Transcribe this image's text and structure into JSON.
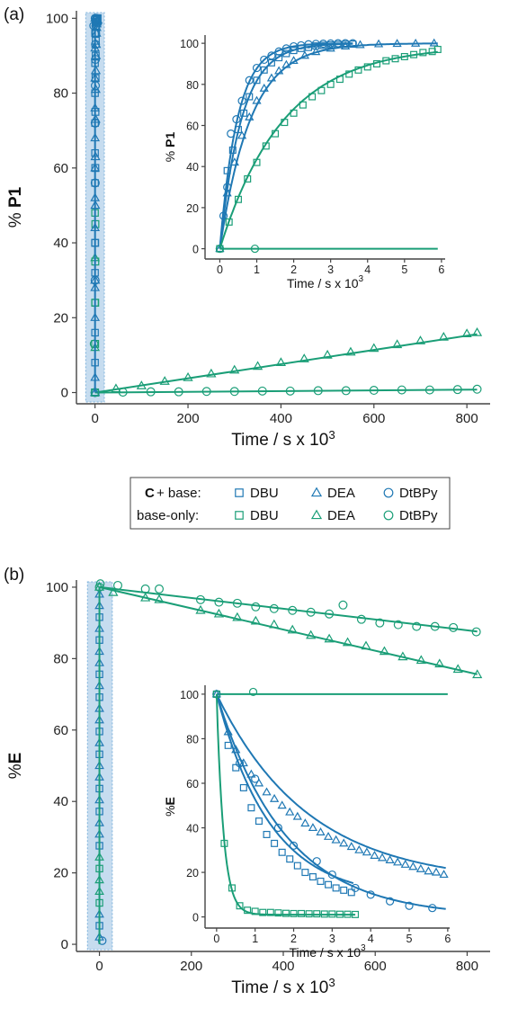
{
  "colors": {
    "blue": "#1f78b4",
    "green": "#1a9e77",
    "highlight": "#c6dcef"
  },
  "panels": {
    "a": {
      "label": "(a)"
    },
    "b": {
      "label": "(b)"
    }
  },
  "legend": {
    "row1_prefix_bold": "C",
    "row1_suffix": " + base:",
    "row2": "base-only:",
    "items": [
      "DBU",
      "DEA",
      "DtBPy"
    ]
  },
  "chart_data": [
    {
      "id": "a-main",
      "type": "scatter",
      "xlabel": "Time / s x 10^3",
      "ylabel": "% P1",
      "xlim": [
        -40,
        850
      ],
      "ylim": [
        -3,
        102
      ],
      "xticks": [
        0,
        200,
        400,
        600,
        800
      ],
      "yticks": [
        0,
        20,
        40,
        60,
        80,
        100
      ],
      "series": [
        {
          "group": "base-only",
          "base": "DEA",
          "marker": "triangle",
          "color": "green",
          "x": [
            0,
            45,
            100,
            150,
            200,
            250,
            300,
            350,
            400,
            450,
            500,
            550,
            600,
            650,
            700,
            750,
            800,
            822
          ],
          "y": [
            0,
            1.0,
            1.8,
            3.0,
            4.0,
            5.0,
            6.0,
            7.0,
            8.0,
            9.0,
            10.0,
            10.8,
            11.8,
            12.8,
            13.8,
            14.8,
            15.7,
            16.0
          ],
          "fit": {
            "x": [
              0,
              822
            ],
            "y": [
              0,
              15.6
            ]
          }
        },
        {
          "group": "base-only",
          "base": "DtBPy",
          "marker": "circle",
          "color": "green",
          "x": [
            0,
            60,
            120,
            180,
            240,
            300,
            360,
            420,
            480,
            540,
            600,
            660,
            720,
            780,
            822
          ],
          "y": [
            0,
            0.1,
            0.2,
            0.2,
            0.3,
            0.3,
            0.4,
            0.4,
            0.5,
            0.5,
            0.6,
            0.7,
            0.7,
            0.8,
            0.9
          ],
          "fit": {
            "x": [
              0,
              822
            ],
            "y": [
              0,
              0.8
            ]
          }
        },
        {
          "group": "C + base",
          "base": "DBU",
          "marker": "square",
          "color": "blue",
          "x": [
            0,
            0.3,
            0.6,
            0.9,
            1.2,
            1.5,
            1.8,
            2.1,
            2.5,
            3.0,
            3.5,
            4.0,
            4.5,
            5.0,
            5.5,
            6.0
          ],
          "y": [
            0,
            40,
            60,
            75,
            84,
            90,
            94,
            96,
            98,
            99,
            99.5,
            99.7,
            99.8,
            99.9,
            99.9,
            100
          ]
        },
        {
          "group": "C + base",
          "base": "DEA",
          "marker": "triangle",
          "color": "blue",
          "x": [
            0,
            0.3,
            0.6,
            0.9,
            1.2,
            1.5,
            1.8,
            2.1,
            2.5,
            3.0,
            3.5,
            4.0,
            4.5,
            5.0,
            5.5,
            6.0
          ],
          "y": [
            0,
            30,
            50,
            63,
            73,
            81,
            86,
            90,
            93,
            96,
            97.5,
            98.5,
            99,
            99.3,
            99.5,
            99.6
          ]
        },
        {
          "group": "C + base",
          "base": "DtBPy",
          "marker": "circle",
          "color": "blue",
          "x": [
            0,
            0.2,
            0.4,
            0.6,
            0.8,
            1.0,
            1.2,
            1.5,
            1.8,
            2.1,
            2.4,
            2.7,
            3.0,
            3.3,
            3.6
          ],
          "y": [
            0,
            30,
            56,
            72,
            82,
            89,
            93,
            96,
            98,
            99,
            99.5,
            99.7,
            99.8,
            99.9,
            100
          ]
        },
        {
          "group": "base-only",
          "base": "DBU",
          "marker": "square",
          "color": "green",
          "x": [
            0,
            0.2,
            0.4,
            0.6,
            0.8
          ],
          "y": [
            0,
            13,
            24,
            35,
            45
          ]
        }
      ]
    },
    {
      "id": "a-inset",
      "type": "scatter",
      "xlabel": "Time / s x 10^3",
      "ylabel": "% P1",
      "xlim": [
        -0.4,
        6.1
      ],
      "ylim": [
        -5,
        104
      ],
      "xticks": [
        0,
        1,
        2,
        3,
        4,
        5,
        6
      ],
      "yticks": [
        0,
        20,
        40,
        60,
        80,
        100
      ],
      "series": [
        {
          "group": "C + base",
          "base": "DtBPy",
          "marker": "circle",
          "color": "blue",
          "x": [
            0,
            0.1,
            0.2,
            0.3,
            0.45,
            0.6,
            0.8,
            1.0,
            1.2,
            1.4,
            1.6,
            1.8,
            2.0,
            2.2,
            2.4,
            2.6,
            2.8,
            3.0,
            3.2,
            3.4,
            3.6
          ],
          "y": [
            0,
            16,
            30,
            56,
            63,
            72,
            82,
            88,
            92,
            94,
            96,
            97.5,
            98.5,
            99,
            99.5,
            99.7,
            99.8,
            99.9,
            100,
            100,
            100
          ],
          "fit": {
            "k": 2.1,
            "A": 100,
            "xmax": 3.6
          }
        },
        {
          "group": "C + base",
          "base": "DBU",
          "marker": "square",
          "color": "blue",
          "x": [
            0,
            0.2,
            0.35,
            0.5,
            0.65,
            0.8,
            1.0,
            1.2,
            1.4,
            1.6,
            1.8,
            2.0,
            2.2,
            2.4,
            2.6,
            2.8,
            3.0,
            3.2,
            3.4,
            3.6
          ],
          "y": [
            0,
            38,
            48,
            58,
            66,
            74,
            82,
            87,
            90.5,
            93,
            95,
            96.5,
            97.5,
            98,
            98.7,
            99,
            99.2,
            99.4,
            99.5,
            99.6
          ],
          "fit": {
            "k": 1.7,
            "A": 100,
            "xmax": 3.6
          }
        },
        {
          "group": "C + base",
          "base": "DEA",
          "marker": "triangle",
          "color": "blue",
          "x": [
            0,
            0.2,
            0.4,
            0.6,
            0.8,
            1.0,
            1.2,
            1.4,
            1.6,
            1.8,
            2.0,
            2.3,
            2.6,
            3.0,
            3.4,
            3.8,
            4.3,
            4.8,
            5.3,
            5.8
          ],
          "y": [
            0,
            27,
            42,
            55,
            64,
            72,
            78,
            83,
            86.5,
            89.5,
            91.5,
            94,
            95.8,
            97.5,
            98.5,
            99.2,
            99.6,
            99.8,
            99.9,
            100
          ],
          "fit": {
            "k": 1.2,
            "A": 100,
            "xmax": 5.9
          }
        },
        {
          "group": "base-only",
          "base": "DBU",
          "marker": "square",
          "color": "green",
          "x": [
            0,
            0.25,
            0.5,
            0.75,
            1.0,
            1.25,
            1.5,
            1.75,
            2.0,
            2.25,
            2.5,
            2.75,
            3.0,
            3.25,
            3.5,
            3.75,
            4.0,
            4.25,
            4.5,
            4.75,
            5.0,
            5.25,
            5.5,
            5.75,
            5.9
          ],
          "y": [
            0,
            13,
            24,
            34,
            42,
            50,
            56,
            61.5,
            66,
            70,
            74,
            77,
            80,
            82.5,
            85,
            87,
            88.5,
            90,
            91.5,
            92.5,
            93.5,
            94.5,
            95.5,
            96,
            97
          ],
          "fit": {
            "k": 0.58,
            "A": 99,
            "xmax": 5.9
          }
        },
        {
          "group": "base-only",
          "base": "DtBPy",
          "marker": "circle",
          "color": "green",
          "x": [
            0,
            0.95
          ],
          "y": [
            0,
            0
          ],
          "fit": {
            "flat": 0,
            "xmax": 5.9
          }
        }
      ]
    },
    {
      "id": "b-main",
      "type": "scatter",
      "xlabel": "Time / s x 10^3",
      "ylabel": "%E",
      "xlim": [
        -50,
        850
      ],
      "ylim": [
        -2,
        102
      ],
      "xticks": [
        0,
        200,
        400,
        600,
        800
      ],
      "yticks": [
        0,
        20,
        40,
        60,
        80,
        100
      ],
      "series": [
        {
          "group": "base-only",
          "base": "DtBPy",
          "marker": "circle",
          "color": "green",
          "x": [
            0,
            40,
            100,
            130,
            220,
            260,
            300,
            340,
            380,
            420,
            460,
            500,
            530,
            570,
            610,
            650,
            690,
            730,
            770,
            820
          ],
          "y": [
            100,
            100.5,
            99.5,
            99.5,
            96.5,
            95.8,
            95.5,
            94.5,
            94,
            93.5,
            93,
            92.5,
            95,
            91,
            90,
            89.5,
            89,
            89,
            88.7,
            87.5
          ],
          "fit": {
            "x": [
              0,
              822
            ],
            "y": [
              100,
              87.6
            ]
          }
        },
        {
          "group": "base-only",
          "base": "DEA",
          "marker": "triangle",
          "color": "green",
          "x": [
            0,
            30,
            100,
            130,
            220,
            260,
            300,
            340,
            380,
            420,
            460,
            500,
            540,
            580,
            620,
            660,
            700,
            740,
            780,
            822
          ],
          "y": [
            100,
            98.5,
            97,
            96.5,
            93.5,
            92.5,
            91.5,
            90.5,
            89.5,
            88,
            86.5,
            85.5,
            84.5,
            83.5,
            82,
            80.5,
            79.5,
            78.5,
            77,
            75.5
          ],
          "fit": {
            "x": [
              0,
              822
            ],
            "y": [
              100,
              75.6
            ]
          }
        }
      ]
    },
    {
      "id": "b-inset",
      "type": "scatter",
      "xlabel": "Time / s x 10^3",
      "ylabel": "%E",
      "xlim": [
        -0.3,
        6.05
      ],
      "ylim": [
        -5,
        104
      ],
      "xticks": [
        0,
        1,
        2,
        3,
        4,
        5,
        6
      ],
      "yticks": [
        0,
        20,
        40,
        60,
        80,
        100
      ],
      "series": [
        {
          "group": "base-only",
          "base": "DtBPy",
          "marker": "circle",
          "color": "green",
          "x": [
            0,
            0.95
          ],
          "y": [
            100,
            101
          ],
          "fit": {
            "flat": 100,
            "xmax": 6.0
          }
        },
        {
          "group": "C + base",
          "base": "DEA",
          "marker": "triangle",
          "color": "blue",
          "x": [
            0,
            0.3,
            0.5,
            0.7,
            0.9,
            1.1,
            1.3,
            1.5,
            1.7,
            1.9,
            2.1,
            2.3,
            2.5,
            2.7,
            2.9,
            3.1,
            3.3,
            3.5,
            3.7,
            3.9,
            4.1,
            4.3,
            4.5,
            4.7,
            4.9,
            5.1,
            5.3,
            5.5,
            5.7,
            5.9
          ],
          "y": [
            100,
            83,
            75,
            69,
            64,
            60,
            56,
            53,
            50,
            47,
            45,
            42,
            40,
            38,
            36,
            34.5,
            33,
            31.5,
            30,
            29,
            27.5,
            26.5,
            25.5,
            24.5,
            23.5,
            22.5,
            21.5,
            20.5,
            20,
            19
          ],
          "fit": {
            "k": 0.42,
            "A": 85,
            "C": 15,
            "xmax": 5.95
          }
        },
        {
          "group": "C + base",
          "base": "DBU",
          "marker": "square",
          "color": "blue",
          "x": [
            0,
            0.3,
            0.5,
            0.7,
            0.9,
            1.1,
            1.3,
            1.5,
            1.7,
            1.9,
            2.1,
            2.3,
            2.5,
            2.7,
            2.9,
            3.1,
            3.3,
            3.5
          ],
          "y": [
            100,
            77,
            67,
            58,
            49,
            43,
            37,
            33,
            29,
            26,
            23,
            20,
            18,
            16,
            14.5,
            13,
            12,
            11
          ],
          "fit": {
            "k": 0.72,
            "A": 92,
            "C": 8,
            "xmax": 3.55
          }
        },
        {
          "group": "C + base",
          "base": "DtBPy",
          "marker": "circle",
          "color": "blue",
          "x": [
            0,
            0.6,
            1.0,
            1.6,
            2.0,
            2.6,
            3.0,
            3.6,
            4.0,
            4.5,
            5.0,
            5.6
          ],
          "y": [
            100,
            69,
            62,
            40,
            32,
            25,
            19,
            13,
            10,
            7,
            5,
            4
          ],
          "fit": {
            "k": 0.56,
            "A": 100,
            "C": 0,
            "xmax": 5.95
          }
        },
        {
          "group": "base-only",
          "base": "DBU",
          "marker": "square",
          "color": "green",
          "x": [
            0,
            0.2,
            0.4,
            0.6,
            0.8,
            1.0,
            1.2,
            1.4,
            1.6,
            1.8,
            2.0,
            2.2,
            2.4,
            2.6,
            2.8,
            3.0,
            3.2,
            3.4,
            3.6
          ],
          "y": [
            100,
            33,
            13,
            5,
            3,
            2.5,
            2,
            2,
            1.8,
            1.6,
            1.5,
            1.5,
            1.4,
            1.4,
            1.3,
            1.3,
            1.2,
            1.2,
            1.1
          ],
          "fit": {
            "k": 5.5,
            "A": 99,
            "C": 1,
            "xmax": 3.6
          }
        }
      ]
    }
  ]
}
